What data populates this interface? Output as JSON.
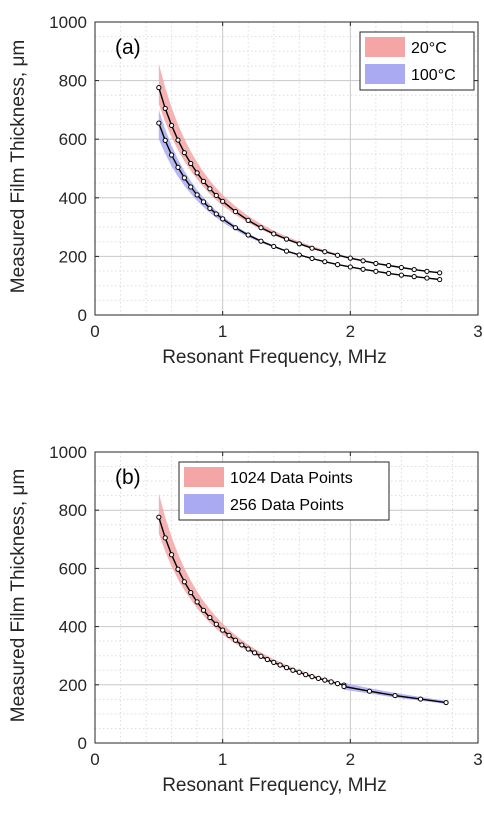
{
  "chart_data": [
    {
      "type": "line",
      "annotation": "(a)",
      "xlabel": "Resonant Frequency, MHz",
      "ylabel": "Measured Film Thickness, μm",
      "xlim": [
        0,
        3
      ],
      "ylim": [
        0,
        1000
      ],
      "xticks": [
        "0",
        "1",
        "2",
        "3"
      ],
      "yticks": [
        "0",
        "200",
        "400",
        "600",
        "800",
        "1000"
      ],
      "grid": true,
      "legend_position": "top-right",
      "series": [
        {
          "name": "20°C",
          "band_color": "#f4a6a6",
          "x": [
            0.5,
            0.55,
            0.6,
            0.65,
            0.7,
            0.75,
            0.8,
            0.85,
            0.9,
            0.95,
            1.0,
            1.1,
            1.2,
            1.3,
            1.4,
            1.5,
            1.6,
            1.7,
            1.8,
            1.9,
            2.0,
            2.1,
            2.2,
            2.3,
            2.4,
            2.5,
            2.6,
            2.7
          ],
          "y": [
            776,
            705,
            647,
            597,
            554,
            517,
            485,
            456,
            431,
            408,
            388,
            353,
            323,
            298,
            277,
            259,
            243,
            228,
            216,
            204,
            194,
            185,
            176,
            169,
            162,
            155,
            149,
            144
          ],
          "band_upper": [
            858,
            776,
            708,
            650,
            601,
            558,
            521,
            488,
            459,
            433,
            410,
            371,
            338,
            311,
            288,
            268,
            251,
            235,
            222,
            209,
            198,
            188,
            179,
            171,
            164,
            157,
            151,
            146
          ],
          "band_lower": [
            720,
            658,
            607,
            563,
            525,
            492,
            463,
            437,
            413,
            392,
            373,
            342,
            315,
            292,
            272,
            255,
            240,
            226,
            214,
            203,
            193,
            184,
            176,
            168,
            161,
            155,
            149,
            144
          ]
        },
        {
          "name": "100°C",
          "band_color": "#aaaaf2",
          "x": [
            0.5,
            0.55,
            0.6,
            0.65,
            0.7,
            0.75,
            0.8,
            0.85,
            0.9,
            0.95,
            1.0,
            1.1,
            1.2,
            1.3,
            1.4,
            1.5,
            1.6,
            1.7,
            1.8,
            1.9,
            2.0,
            2.1,
            2.2,
            2.3,
            2.4,
            2.5,
            2.6,
            2.7
          ],
          "y": [
            655,
            596,
            546,
            504,
            468,
            437,
            410,
            386,
            364,
            345,
            328,
            298,
            273,
            252,
            234,
            218,
            205,
            193,
            182,
            172,
            164,
            156,
            149,
            142,
            136,
            131,
            126,
            121
          ],
          "band_upper": [
            700,
            633,
            578,
            531,
            491,
            457,
            427,
            401,
            377,
            356,
            337,
            305,
            278,
            256,
            237,
            220,
            206,
            193,
            182,
            172,
            163,
            155,
            148,
            141,
            135,
            130,
            125,
            120
          ],
          "band_lower": [
            600,
            550,
            508,
            472,
            441,
            414,
            390,
            368,
            349,
            332,
            316,
            289,
            266,
            247,
            230,
            215,
            202,
            191,
            181,
            172,
            164,
            157,
            150,
            144,
            138,
            133,
            128,
            123
          ]
        }
      ]
    },
    {
      "type": "line",
      "annotation": "(b)",
      "xlabel": "Resonant Frequency, MHz",
      "ylabel": "Measured Film Thickness, μm",
      "xlim": [
        0,
        3
      ],
      "ylim": [
        0,
        1000
      ],
      "xticks": [
        "0",
        "1",
        "2",
        "3"
      ],
      "yticks": [
        "0",
        "200",
        "400",
        "600",
        "800",
        "1000"
      ],
      "grid": true,
      "legend_position": "top-right",
      "series": [
        {
          "name": "1024 Data Points",
          "band_color": "#f4a6a6",
          "x": [
            0.5,
            0.55,
            0.6,
            0.65,
            0.7,
            0.75,
            0.8,
            0.85,
            0.9,
            0.95,
            1.0,
            1.05,
            1.1,
            1.15,
            1.2,
            1.25,
            1.3,
            1.35,
            1.4,
            1.45,
            1.5,
            1.55,
            1.6,
            1.65,
            1.7,
            1.75,
            1.8,
            1.85,
            1.9,
            1.95
          ],
          "y": [
            776,
            705,
            647,
            597,
            554,
            517,
            485,
            456,
            431,
            408,
            388,
            370,
            353,
            337,
            323,
            310,
            298,
            287,
            277,
            268,
            259,
            250,
            243,
            235,
            228,
            222,
            216,
            210,
            204,
            199
          ],
          "band_upper": [
            858,
            776,
            708,
            650,
            601,
            558,
            521,
            488,
            459,
            433,
            410,
            389,
            371,
            354,
            338,
            324,
            311,
            299,
            288,
            278,
            268,
            259,
            251,
            243,
            235,
            228,
            222,
            216,
            209,
            203
          ],
          "band_lower": [
            720,
            658,
            607,
            563,
            525,
            492,
            463,
            437,
            413,
            392,
            373,
            357,
            342,
            328,
            315,
            303,
            292,
            282,
            272,
            263,
            255,
            247,
            240,
            233,
            226,
            220,
            214,
            208,
            203,
            198
          ]
        },
        {
          "name": "256 Data Points",
          "band_color": "#aaaaf2",
          "x": [
            1.95,
            2.15,
            2.35,
            2.55,
            2.75
          ],
          "y": [
            194,
            178,
            163,
            151,
            139
          ],
          "band_upper": [
            207,
            188,
            172,
            158,
            145
          ],
          "band_lower": [
            183,
            170,
            156,
            145,
            134
          ]
        }
      ]
    }
  ]
}
